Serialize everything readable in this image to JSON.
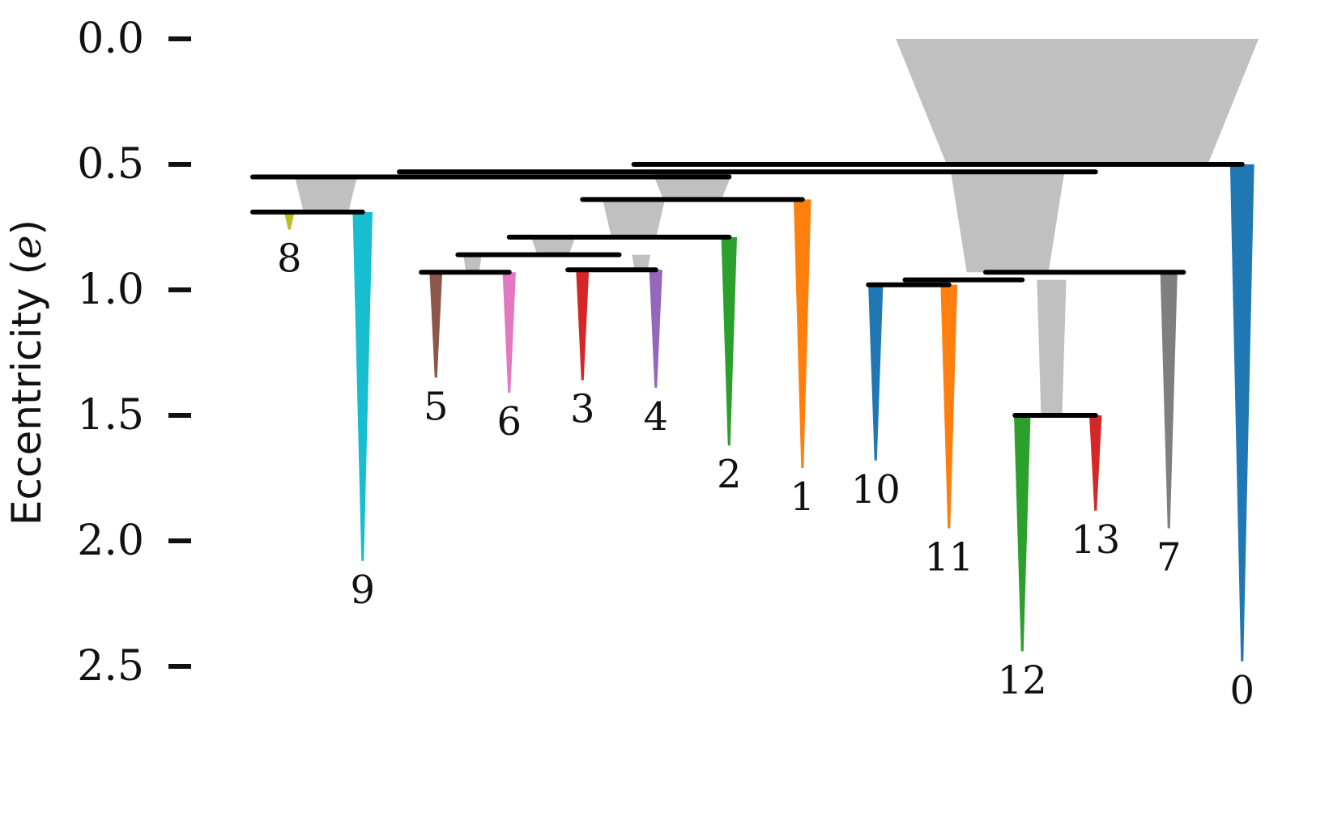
{
  "chart_data": {
    "type": "icicle-dendrogram",
    "ylabel_main": "Eccentricity (",
    "ylabel_symbol": "e",
    "ylabel_close": ")",
    "ylim": [
      0.0,
      2.5
    ],
    "yticks": [
      "0.0",
      "0.5",
      "1.0",
      "1.5",
      "2.0",
      "2.5"
    ],
    "ytick_values": [
      0.0,
      0.5,
      1.0,
      1.5,
      2.0,
      2.5
    ],
    "grid": false,
    "leaves": [
      {
        "id": "8",
        "x": 0.5,
        "e_start": 0.69,
        "e_end": 0.76,
        "color": "#bcbd22",
        "label": "8"
      },
      {
        "id": "9",
        "x": 1.5,
        "e_start": 0.69,
        "e_end": 2.08,
        "color": "#17becf",
        "label": "9"
      },
      {
        "id": "5",
        "x": 2.5,
        "e_start": 0.93,
        "e_end": 1.35,
        "color": "#8c564b",
        "label": "5"
      },
      {
        "id": "6",
        "x": 3.5,
        "e_start": 0.93,
        "e_end": 1.41,
        "color": "#e377c2",
        "label": "6"
      },
      {
        "id": "3",
        "x": 4.5,
        "e_start": 0.92,
        "e_end": 1.36,
        "color": "#d62728",
        "label": "3"
      },
      {
        "id": "4",
        "x": 5.5,
        "e_start": 0.92,
        "e_end": 1.39,
        "color": "#9467bd",
        "label": "4"
      },
      {
        "id": "2",
        "x": 6.5,
        "e_start": 0.79,
        "e_end": 1.62,
        "color": "#2ca02c",
        "label": "2"
      },
      {
        "id": "1",
        "x": 7.5,
        "e_start": 0.64,
        "e_end": 1.71,
        "color": "#ff7f0e",
        "label": "1"
      },
      {
        "id": "10",
        "x": 8.5,
        "e_start": 0.98,
        "e_end": 1.68,
        "color": "#1f77b4",
        "label": "10"
      },
      {
        "id": "11",
        "x": 9.5,
        "e_start": 0.98,
        "e_end": 1.95,
        "color": "#ff7f0e",
        "label": "11"
      },
      {
        "id": "12",
        "x": 10.5,
        "e_start": 1.5,
        "e_end": 2.44,
        "color": "#2ca02c",
        "label": "12"
      },
      {
        "id": "13",
        "x": 11.5,
        "e_start": 1.5,
        "e_end": 1.88,
        "color": "#d62728",
        "label": "13"
      },
      {
        "id": "7",
        "x": 12.5,
        "e_start": 0.93,
        "e_end": 1.95,
        "color": "#7f7f7f",
        "label": "7"
      },
      {
        "id": "0",
        "x": 13.5,
        "e_start": 0.5,
        "e_end": 2.48,
        "color": "#1f77b4",
        "label": "0"
      }
    ],
    "merges": [
      {
        "id": "m_top",
        "e": 0.5,
        "x_from": 5.2,
        "x_to": 13.5
      },
      {
        "id": "m_a",
        "e": 0.53,
        "x_from": 2.0,
        "x_to": 11.5
      },
      {
        "id": "m_b",
        "e": 0.55,
        "x_from": 0.0,
        "x_to": 6.5
      },
      {
        "id": "m_89",
        "e": 0.69,
        "x_from": 0.0,
        "x_to": 1.5
      },
      {
        "id": "m_c",
        "e": 0.64,
        "x_from": 4.5,
        "x_to": 7.5
      },
      {
        "id": "m_d",
        "e": 0.79,
        "x_from": 3.5,
        "x_to": 6.5
      },
      {
        "id": "m_e",
        "e": 0.86,
        "x_from": 2.8,
        "x_to": 5.0
      },
      {
        "id": "m_56",
        "e": 0.93,
        "x_from": 2.3,
        "x_to": 3.5
      },
      {
        "id": "m_34",
        "e": 0.92,
        "x_from": 4.3,
        "x_to": 5.5
      },
      {
        "id": "m_f",
        "e": 0.93,
        "x_from": 10.0,
        "x_to": 12.7
      },
      {
        "id": "m_g",
        "e": 0.96,
        "x_from": 8.9,
        "x_to": 10.5
      },
      {
        "id": "m_1011",
        "e": 0.98,
        "x_from": 8.4,
        "x_to": 9.5
      },
      {
        "id": "m_1213",
        "e": 1.5,
        "x_from": 10.4,
        "x_to": 11.5
      }
    ],
    "internal_trunks": [
      {
        "id": "root",
        "x_center": 11.25,
        "width": 4.95,
        "e_start": 0.0,
        "e_end": 0.5
      },
      {
        "id": "t_a",
        "x_center": 10.3,
        "width": 1.55,
        "e_start": 0.53,
        "e_end": 0.93
      },
      {
        "id": "t_b",
        "x_center": 1.0,
        "width": 0.85,
        "e_start": 0.55,
        "e_end": 0.69
      },
      {
        "id": "t_c",
        "x_center": 6.0,
        "width": 1.1,
        "e_start": 0.53,
        "e_end": 0.64
      },
      {
        "id": "t_d",
        "x_center": 5.2,
        "width": 0.85,
        "e_start": 0.64,
        "e_end": 0.79
      },
      {
        "id": "t_e",
        "x_center": 4.1,
        "width": 0.6,
        "e_start": 0.79,
        "e_end": 0.86
      },
      {
        "id": "t_f",
        "x_center": 3.0,
        "width": 0.25,
        "e_start": 0.86,
        "e_end": 0.93
      },
      {
        "id": "t_g",
        "x_center": 5.3,
        "width": 0.25,
        "e_start": 0.86,
        "e_end": 0.92
      },
      {
        "id": "t_h",
        "x_center": 10.9,
        "width": 0.4,
        "e_start": 0.96,
        "e_end": 1.5
      }
    ]
  }
}
